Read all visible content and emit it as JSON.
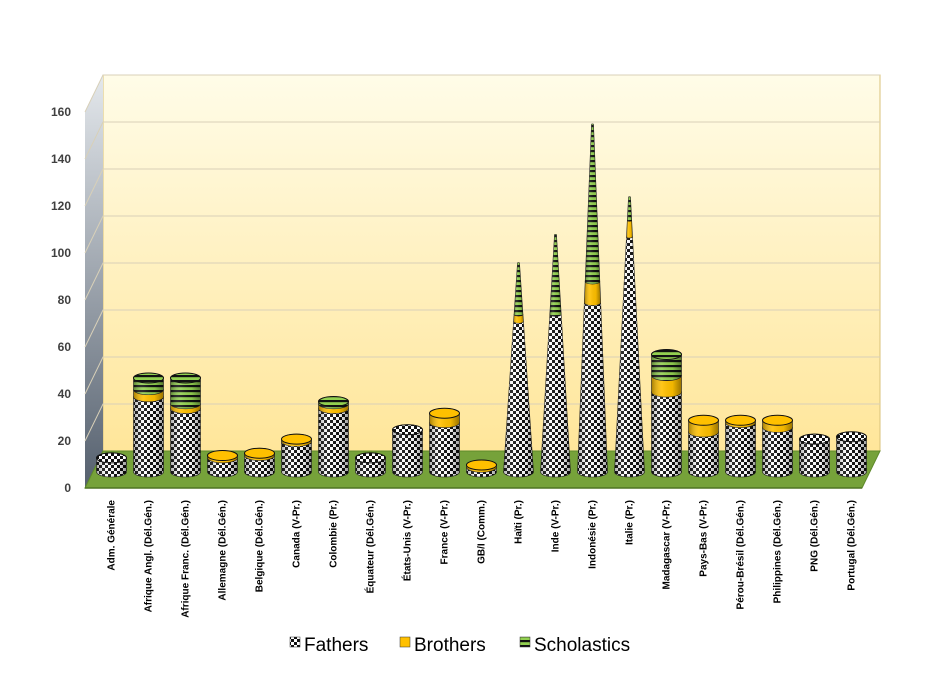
{
  "chart_data": {
    "type": "bar",
    "stacked": true,
    "three_d": true,
    "bar_shape": "cylinder-to-cone",
    "categories": [
      "Adm. Générale",
      "Afrique Angl. (Dél.Gén.)",
      "Afrique Franc. (Dél.Gén.)",
      "Allemagne (Dél.Gén.)",
      "Belgique (Dél.Gén.)",
      "Canada (V-Pr.)",
      "Colombie (Pr.)",
      "Équateur (Dél.Gén.)",
      "États-Unis (V-Pr.)",
      "France (V-Pr.)",
      "GB/I (Comm.)",
      "Haïti (Pr.)",
      "Inde (V-Pr.)",
      "Indonésie (Pr.)",
      "Italie (Pr.)",
      "Madagascar (V-Pr.)",
      "Pays-Bas (V-Pr.)",
      "Pérou-Brésil (Dél.Gén.)",
      "Philippines (Dél.Gén.)",
      "PNG (Dél.Gén.)",
      "Portugal (Dél.Gén.)"
    ],
    "series": [
      {
        "name": "Fathers",
        "color": "#ffffff",
        "pattern": "black-white-checker",
        "values": [
          6,
          32,
          27,
          6,
          7,
          13,
          27,
          6,
          18,
          21,
          2,
          64,
          67,
          72,
          100,
          34,
          17,
          21,
          19,
          14,
          15
        ]
      },
      {
        "name": "Brothers",
        "color": "#ffc000",
        "values": [
          0,
          3,
          2,
          1,
          1,
          1,
          2,
          0,
          0,
          4,
          1,
          3,
          0,
          9,
          7,
          7,
          5,
          1,
          3,
          0,
          0
        ]
      },
      {
        "name": "Scholastics",
        "color": "#92d050",
        "pattern": "green-black-stripes",
        "values": [
          0,
          5,
          11,
          0,
          0,
          0,
          1,
          0,
          0,
          0,
          0,
          22,
          34,
          67,
          10,
          9,
          0,
          0,
          0,
          0,
          0
        ]
      }
    ],
    "ylim": [
      0,
      160
    ],
    "yticks": [
      0,
      20,
      40,
      60,
      80,
      100,
      120,
      140,
      160
    ],
    "grid": true,
    "legend_position": "bottom",
    "colors": {
      "wall_top": "#fffbe2",
      "wall_bottom": "#ffe8a3",
      "floor": "#77a33b",
      "side_wall": "#607080"
    }
  }
}
